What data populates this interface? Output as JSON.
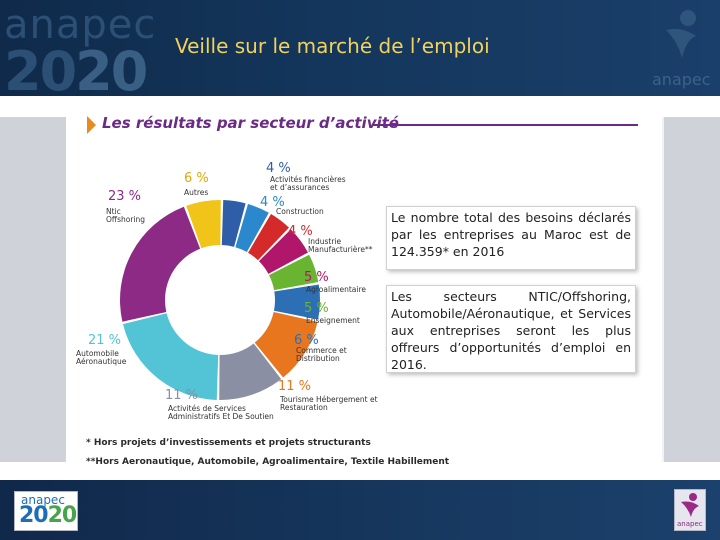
{
  "header": {
    "title": "Veille sur le marché de l’emploi",
    "logo_word": "anapec",
    "logo_year_a": "20",
    "logo_year_b": "20",
    "brand": "anapec"
  },
  "section": {
    "heading": "Les résultats par secteur d’activité"
  },
  "chart_data": {
    "type": "pie",
    "title": "Les résultats par secteur d’activité",
    "slices": [
      {
        "label": "Activités financières et d’assurances",
        "value": 4,
        "display": "4 %",
        "color": "#2f5ea8"
      },
      {
        "label": "Construction",
        "value": 4,
        "display": "4 %",
        "color": "#2c88cc"
      },
      {
        "label": "Industrie Manufacturière**",
        "value": 4,
        "display": "4 %",
        "color": "#d42a2a"
      },
      {
        "label": "Agroalimentaire",
        "value": 5,
        "display": "5 %",
        "color": "#b0176a"
      },
      {
        "label": "Enseignement",
        "value": 5,
        "display": "5 %",
        "color": "#69b531"
      },
      {
        "label": "Commerce et Distribution",
        "value": 6,
        "display": "6 %",
        "color": "#2c6fb5"
      },
      {
        "label": "Tourisme Hébergement et Restauration",
        "value": 11,
        "display": "11 %",
        "color": "#e8761e"
      },
      {
        "label": "Activités de Services Administratifs Et De Soutien",
        "value": 11,
        "display": "11 %",
        "color": "#8a8fa3"
      },
      {
        "label": "Automobile Aéronautique",
        "value": 21,
        "display": "21 %",
        "color": "#52c4d6"
      },
      {
        "label": "Ntic Offshoring",
        "value": 23,
        "display": "23 %",
        "color": "#8d2a86"
      },
      {
        "label": "Autres",
        "value": 6,
        "display": "6 %",
        "color": "#f0c419"
      }
    ],
    "labels_lines": {
      "financial": [
        "Activités financières",
        "et d’assurances"
      ],
      "industry": [
        "Industrie",
        "Manufacturière**"
      ],
      "commerce": [
        "Commerce et",
        "Distribution"
      ],
      "tourism": [
        "Tourisme Hébergement et",
        "Restauration"
      ],
      "services": [
        "Activités de Services",
        "Administratifs Et De Soutien"
      ],
      "auto": [
        "Automobile",
        "Aéronautique"
      ],
      "ntic": [
        "Ntic",
        "Offshoring"
      ]
    }
  },
  "footnotes": [
    "* Hors projets d’investissements et projets structurants",
    "**Hors Aeronautique, Automobile, Agroalimentaire, Textile Habillement"
  ],
  "textboxes": {
    "box1": "Le nombre total des besoins déclarés par les entreprises au Maroc est de 124.359* en 2016",
    "box2": "Les secteurs NTIC/Offshoring, Automobile/Aéronautique, et Services aux entreprises seront les plus offreurs d’opportunités d’emploi en 2016."
  },
  "footer": {
    "logo_word": "anapec",
    "logo_year_a": "20",
    "logo_year_b": "20",
    "brand": "anapec"
  }
}
